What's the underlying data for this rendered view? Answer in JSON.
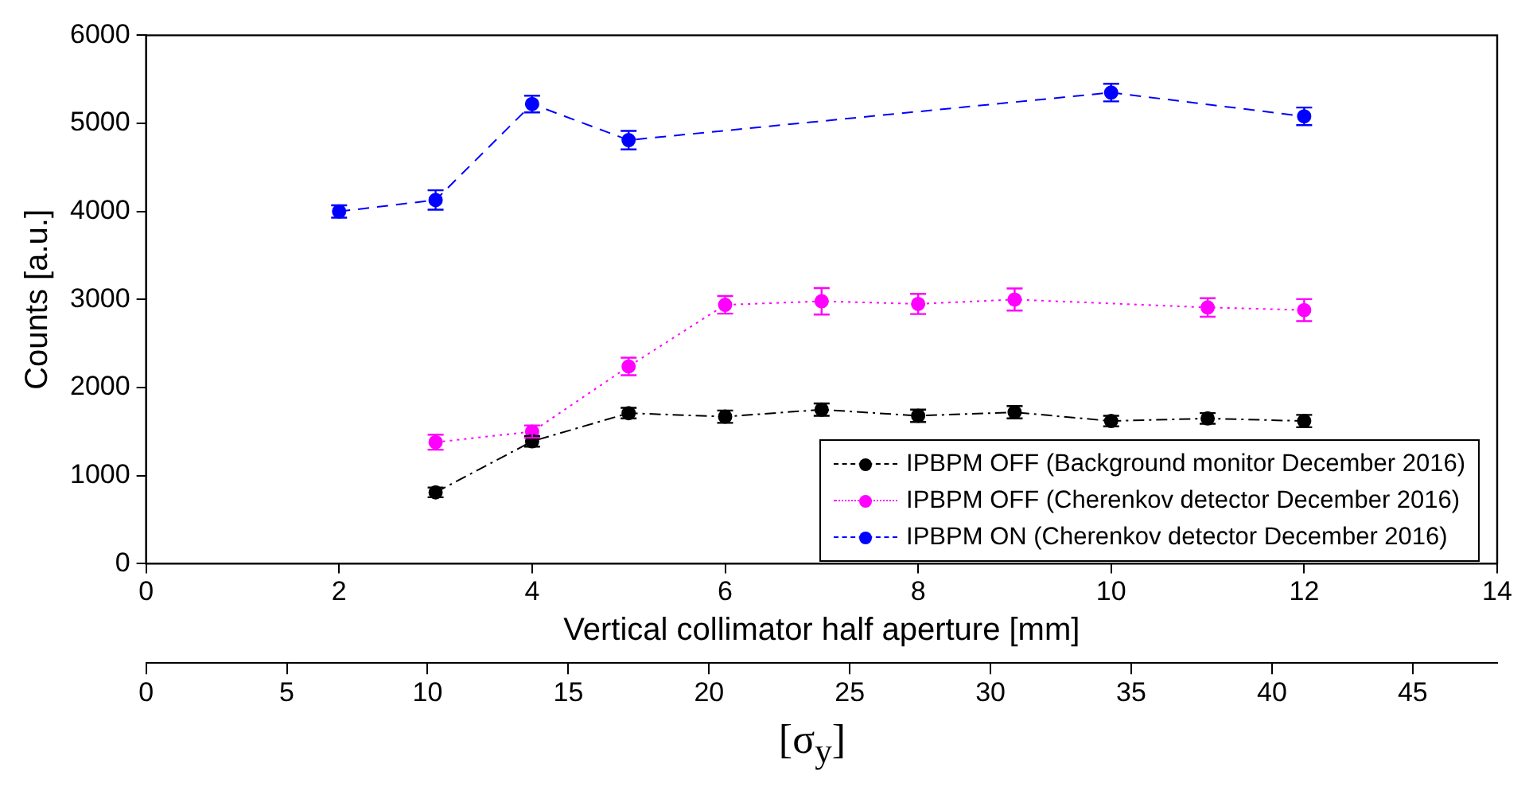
{
  "chart_data": {
    "type": "line",
    "xlabel": "Vertical collimator half aperture [mm]",
    "ylabel": "Counts [a.u.]",
    "x2label": "[σ$_{y}$]",
    "xlim": [
      0,
      14
    ],
    "xticks": [
      0,
      2,
      4,
      6,
      8,
      10,
      12,
      14
    ],
    "ylim": [
      0,
      6000
    ],
    "yticks": [
      0,
      1000,
      2000,
      3000,
      4000,
      5000,
      6000
    ],
    "x2lim": [
      0,
      48
    ],
    "x2ticks": [
      0,
      5,
      10,
      15,
      20,
      25,
      30,
      35,
      40,
      45
    ],
    "grid": false,
    "legend": "bottom right",
    "marker": "circle",
    "series": [
      {
        "name": "IPBPM OFF (Background monitor December 2016)",
        "color": "#000000",
        "line_style": "dashdot",
        "x": [
          3,
          4,
          5,
          6,
          7,
          8,
          9,
          10,
          11,
          12
        ],
        "values": [
          810,
          1390,
          1710,
          1670,
          1750,
          1680,
          1720,
          1620,
          1650,
          1620
        ],
        "errors": [
          55,
          60,
          60,
          70,
          70,
          70,
          70,
          60,
          60,
          70
        ]
      },
      {
        "name": "IPBPM OFF (Cherenkov detector December 2016)",
        "color": "#ff00ff",
        "line_style": "dotted",
        "x": [
          3,
          4,
          5,
          6,
          7,
          8,
          9,
          11,
          12
        ],
        "values": [
          1380,
          1500,
          2240,
          2940,
          2980,
          2950,
          3000,
          2910,
          2880
        ],
        "errors": [
          85,
          70,
          100,
          100,
          150,
          115,
          125,
          105,
          125
        ]
      },
      {
        "name": "IPBPM ON (Cherenkov detector December 2016)",
        "color": "#0000ff",
        "line_style": "dashed",
        "x": [
          2,
          3,
          4,
          5,
          10,
          12
        ],
        "values": [
          4000,
          4130,
          5220,
          4810,
          5350,
          5080
        ],
        "errors": [
          70,
          110,
          95,
          105,
          100,
          100
        ]
      }
    ]
  }
}
